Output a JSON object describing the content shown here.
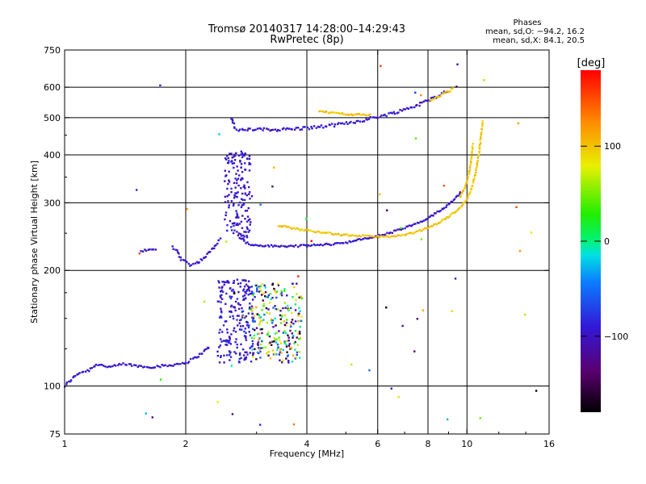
{
  "chart_data": {
    "type": "scatter",
    "title": "Tromsø 20140317 14:28:00–14:29:43",
    "subtitle": "RwPretec (8p)",
    "xlabel": "Frequency [MHz]",
    "ylabel": "Stationary phase Virtual Height [km]",
    "x_scale": "log",
    "y_scale": "log",
    "xlim": [
      1,
      16
    ],
    "ylim": [
      75,
      750
    ],
    "x_ticks": [
      1,
      2,
      4,
      6,
      8,
      10,
      16
    ],
    "x_tick_labels": [
      "1",
      "2",
      "4",
      "6",
      "8",
      "10",
      "16"
    ],
    "y_ticks": [
      75,
      100,
      200,
      300,
      400,
      500,
      600,
      750
    ],
    "y_tick_labels": [
      "75",
      "100",
      "200",
      "300",
      "400",
      "500",
      "600",
      "750"
    ],
    "grid_x": [
      2,
      4,
      6,
      8,
      10
    ],
    "grid_y": [
      100,
      200,
      300,
      400,
      500,
      600
    ],
    "stats": {
      "heading": "Phases",
      "line_o": "mean, sd,O: −94.2, 16.2",
      "line_x": "mean, sd,X:  84.1, 20.5"
    },
    "colorbar": {
      "label": "[deg]",
      "range": [
        -180,
        180
      ],
      "ticks": [
        100,
        0,
        -100
      ],
      "tick_labels": [
        "100",
        "0",
        "−100"
      ]
    },
    "traces": [
      {
        "phase": -95,
        "jitter": 0.015,
        "points": [
          [
            1.0,
            100
          ],
          [
            1.04,
            104
          ],
          [
            1.08,
            108
          ],
          [
            1.15,
            110
          ],
          [
            1.2,
            114
          ],
          [
            1.3,
            112
          ],
          [
            1.4,
            114
          ],
          [
            1.6,
            112
          ],
          [
            1.8,
            113
          ],
          [
            2.0,
            115
          ],
          [
            2.1,
            118
          ],
          [
            2.2,
            122
          ],
          [
            2.3,
            127
          ]
        ]
      },
      {
        "phase": -95,
        "jitter": 0.012,
        "points": [
          [
            1.55,
            225
          ],
          [
            1.7,
            227
          ]
        ]
      },
      {
        "phase": -95,
        "jitter": 0.015,
        "points": [
          [
            1.85,
            230
          ],
          [
            1.9,
            225
          ],
          [
            1.95,
            214
          ],
          [
            2.05,
            207
          ],
          [
            2.15,
            210
          ],
          [
            2.25,
            218
          ],
          [
            2.35,
            230
          ],
          [
            2.45,
            245
          ]
        ]
      },
      {
        "phase": -95,
        "jitter": 0.018,
        "points": [
          [
            2.6,
            500
          ],
          [
            2.65,
            470
          ],
          [
            2.7,
            462
          ],
          [
            2.9,
            466
          ],
          [
            3.3,
            465
          ],
          [
            3.8,
            468
          ],
          [
            4.4,
            474
          ],
          [
            5.0,
            483
          ],
          [
            5.6,
            494
          ],
          [
            6.2,
            506
          ],
          [
            6.9,
            522
          ],
          [
            7.6,
            541
          ],
          [
            8.3,
            564
          ],
          [
            9.0,
            590
          ]
        ]
      },
      {
        "phase": -95,
        "jitter": 0.012,
        "points": [
          [
            2.8,
            238
          ],
          [
            2.9,
            233
          ],
          [
            3.1,
            232
          ],
          [
            3.5,
            231
          ],
          [
            4.0,
            232
          ],
          [
            4.6,
            234
          ],
          [
            5.2,
            238
          ],
          [
            5.8,
            244
          ],
          [
            6.4,
            250
          ],
          [
            7.0,
            258
          ],
          [
            7.6,
            266
          ],
          [
            8.1,
            275
          ],
          [
            8.6,
            287
          ],
          [
            9.0,
            297
          ],
          [
            9.4,
            310
          ],
          [
            9.7,
            322
          ]
        ]
      },
      {
        "phase": 100,
        "jitter": 0.01,
        "points": [
          [
            3.4,
            262
          ],
          [
            3.6,
            259
          ],
          [
            3.9,
            255
          ],
          [
            4.3,
            252
          ],
          [
            4.8,
            248
          ],
          [
            5.4,
            246
          ],
          [
            6.0,
            245
          ],
          [
            6.5,
            245
          ],
          [
            7.0,
            247
          ],
          [
            7.5,
            252
          ],
          [
            8.0,
            258
          ],
          [
            8.5,
            266
          ],
          [
            9.0,
            276
          ],
          [
            9.5,
            288
          ],
          [
            10.0,
            306
          ],
          [
            10.3,
            330
          ],
          [
            10.5,
            360
          ],
          [
            10.7,
            400
          ],
          [
            10.85,
            450
          ],
          [
            10.95,
            495
          ]
        ]
      },
      {
        "phase": 100,
        "jitter": 0.01,
        "points": [
          [
            4.3,
            518
          ],
          [
            4.8,
            513
          ],
          [
            5.3,
            509
          ],
          [
            5.8,
            508
          ]
        ]
      },
      {
        "phase": 100,
        "jitter": 0.012,
        "points": [
          [
            8.1,
            555
          ],
          [
            8.6,
            570
          ],
          [
            9.0,
            585
          ],
          [
            9.3,
            600
          ]
        ]
      },
      {
        "phase": 100,
        "jitter": 0.01,
        "points": [
          [
            9.6,
            310
          ],
          [
            9.9,
            330
          ],
          [
            10.1,
            355
          ],
          [
            10.25,
            390
          ],
          [
            10.35,
            430
          ]
        ]
      }
    ],
    "clusters": [
      {
        "phase_min": -110,
        "phase_max": -75,
        "x_range": [
          2.4,
          2.95
        ],
        "y_range": [
          115,
          190
        ],
        "count": 220
      },
      {
        "phase_min": -110,
        "phase_max": -80,
        "x_range": [
          2.5,
          2.9
        ],
        "y_range": [
          240,
          410
        ],
        "count": 170
      },
      {
        "phase_min": -180,
        "phase_max": 120,
        "x_range": [
          2.9,
          3.9
        ],
        "y_range": [
          115,
          185
        ],
        "count": 260
      },
      {
        "phase_min": -180,
        "phase_max": 180,
        "x_range": [
          1.5,
          15.0
        ],
        "y_range": [
          78,
          700
        ],
        "count": 55
      }
    ]
  }
}
